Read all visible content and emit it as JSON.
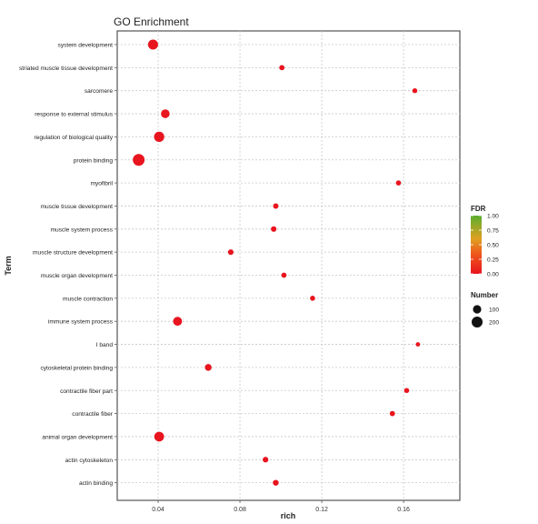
{
  "chart_data": {
    "type": "scatter",
    "title": "GO Enrichment",
    "xlabel": "rich",
    "ylabel": "Term",
    "xlim": [
      0.02,
      0.1875
    ],
    "xticks": [
      0.04,
      0.08,
      0.12,
      0.16
    ],
    "xtick_labels": [
      "0.04",
      "0.08",
      "0.12",
      "0.16"
    ],
    "grid": true,
    "legend_position": "right",
    "color_legend": {
      "title": "FDR",
      "ticks": [
        1.0,
        0.75,
        0.5,
        0.25,
        0.0
      ],
      "tick_labels": [
        "1.00",
        "0.75",
        "0.50",
        "0.25",
        "0.00"
      ],
      "colors": {
        "low": "#e8141e",
        "mid": "#f0a020",
        "high": "#5aae2e"
      }
    },
    "size_legend": {
      "title": "Number",
      "entries": [
        {
          "label": "100",
          "value": 100
        },
        {
          "label": "200",
          "value": 200
        }
      ]
    },
    "points": [
      {
        "term": "system development",
        "rich": 0.0375,
        "number": 160,
        "fdr": 0.0
      },
      {
        "term": "striated muscle tissue development",
        "rich": 0.1005,
        "number": 25,
        "fdr": 0.0
      },
      {
        "term": "sarcomere",
        "rich": 0.1655,
        "number": 20,
        "fdr": 0.0
      },
      {
        "term": "response to external stimulus",
        "rich": 0.0435,
        "number": 110,
        "fdr": 0.0
      },
      {
        "term": "regulation of biological quality",
        "rich": 0.0405,
        "number": 170,
        "fdr": 0.0
      },
      {
        "term": "protein binding",
        "rich": 0.0305,
        "number": 240,
        "fdr": 0.0
      },
      {
        "term": "myofibril",
        "rich": 0.1575,
        "number": 22,
        "fdr": 0.0
      },
      {
        "term": "muscle tissue development",
        "rich": 0.0975,
        "number": 28,
        "fdr": 0.0
      },
      {
        "term": "muscle system process",
        "rich": 0.0965,
        "number": 30,
        "fdr": 0.0
      },
      {
        "term": "muscle structure development",
        "rich": 0.0755,
        "number": 30,
        "fdr": 0.0
      },
      {
        "term": "muscle organ development",
        "rich": 0.1015,
        "number": 25,
        "fdr": 0.0
      },
      {
        "term": "muscle contraction",
        "rich": 0.1155,
        "number": 22,
        "fdr": 0.0
      },
      {
        "term": "immune system process",
        "rich": 0.0495,
        "number": 120,
        "fdr": 0.0
      },
      {
        "term": "I band",
        "rich": 0.167,
        "number": 12,
        "fdr": 0.0
      },
      {
        "term": "cytoskeletal protein binding",
        "rich": 0.0645,
        "number": 55,
        "fdr": 0.0
      },
      {
        "term": "contractile fiber part",
        "rich": 0.1615,
        "number": 22,
        "fdr": 0.0
      },
      {
        "term": "contractile fiber",
        "rich": 0.1545,
        "number": 25,
        "fdr": 0.0
      },
      {
        "term": "animal organ development",
        "rich": 0.0405,
        "number": 150,
        "fdr": 0.0
      },
      {
        "term": "actin cytoskeleton",
        "rich": 0.0925,
        "number": 32,
        "fdr": 0.0
      },
      {
        "term": "actin binding",
        "rich": 0.0975,
        "number": 35,
        "fdr": 0.0
      }
    ]
  }
}
